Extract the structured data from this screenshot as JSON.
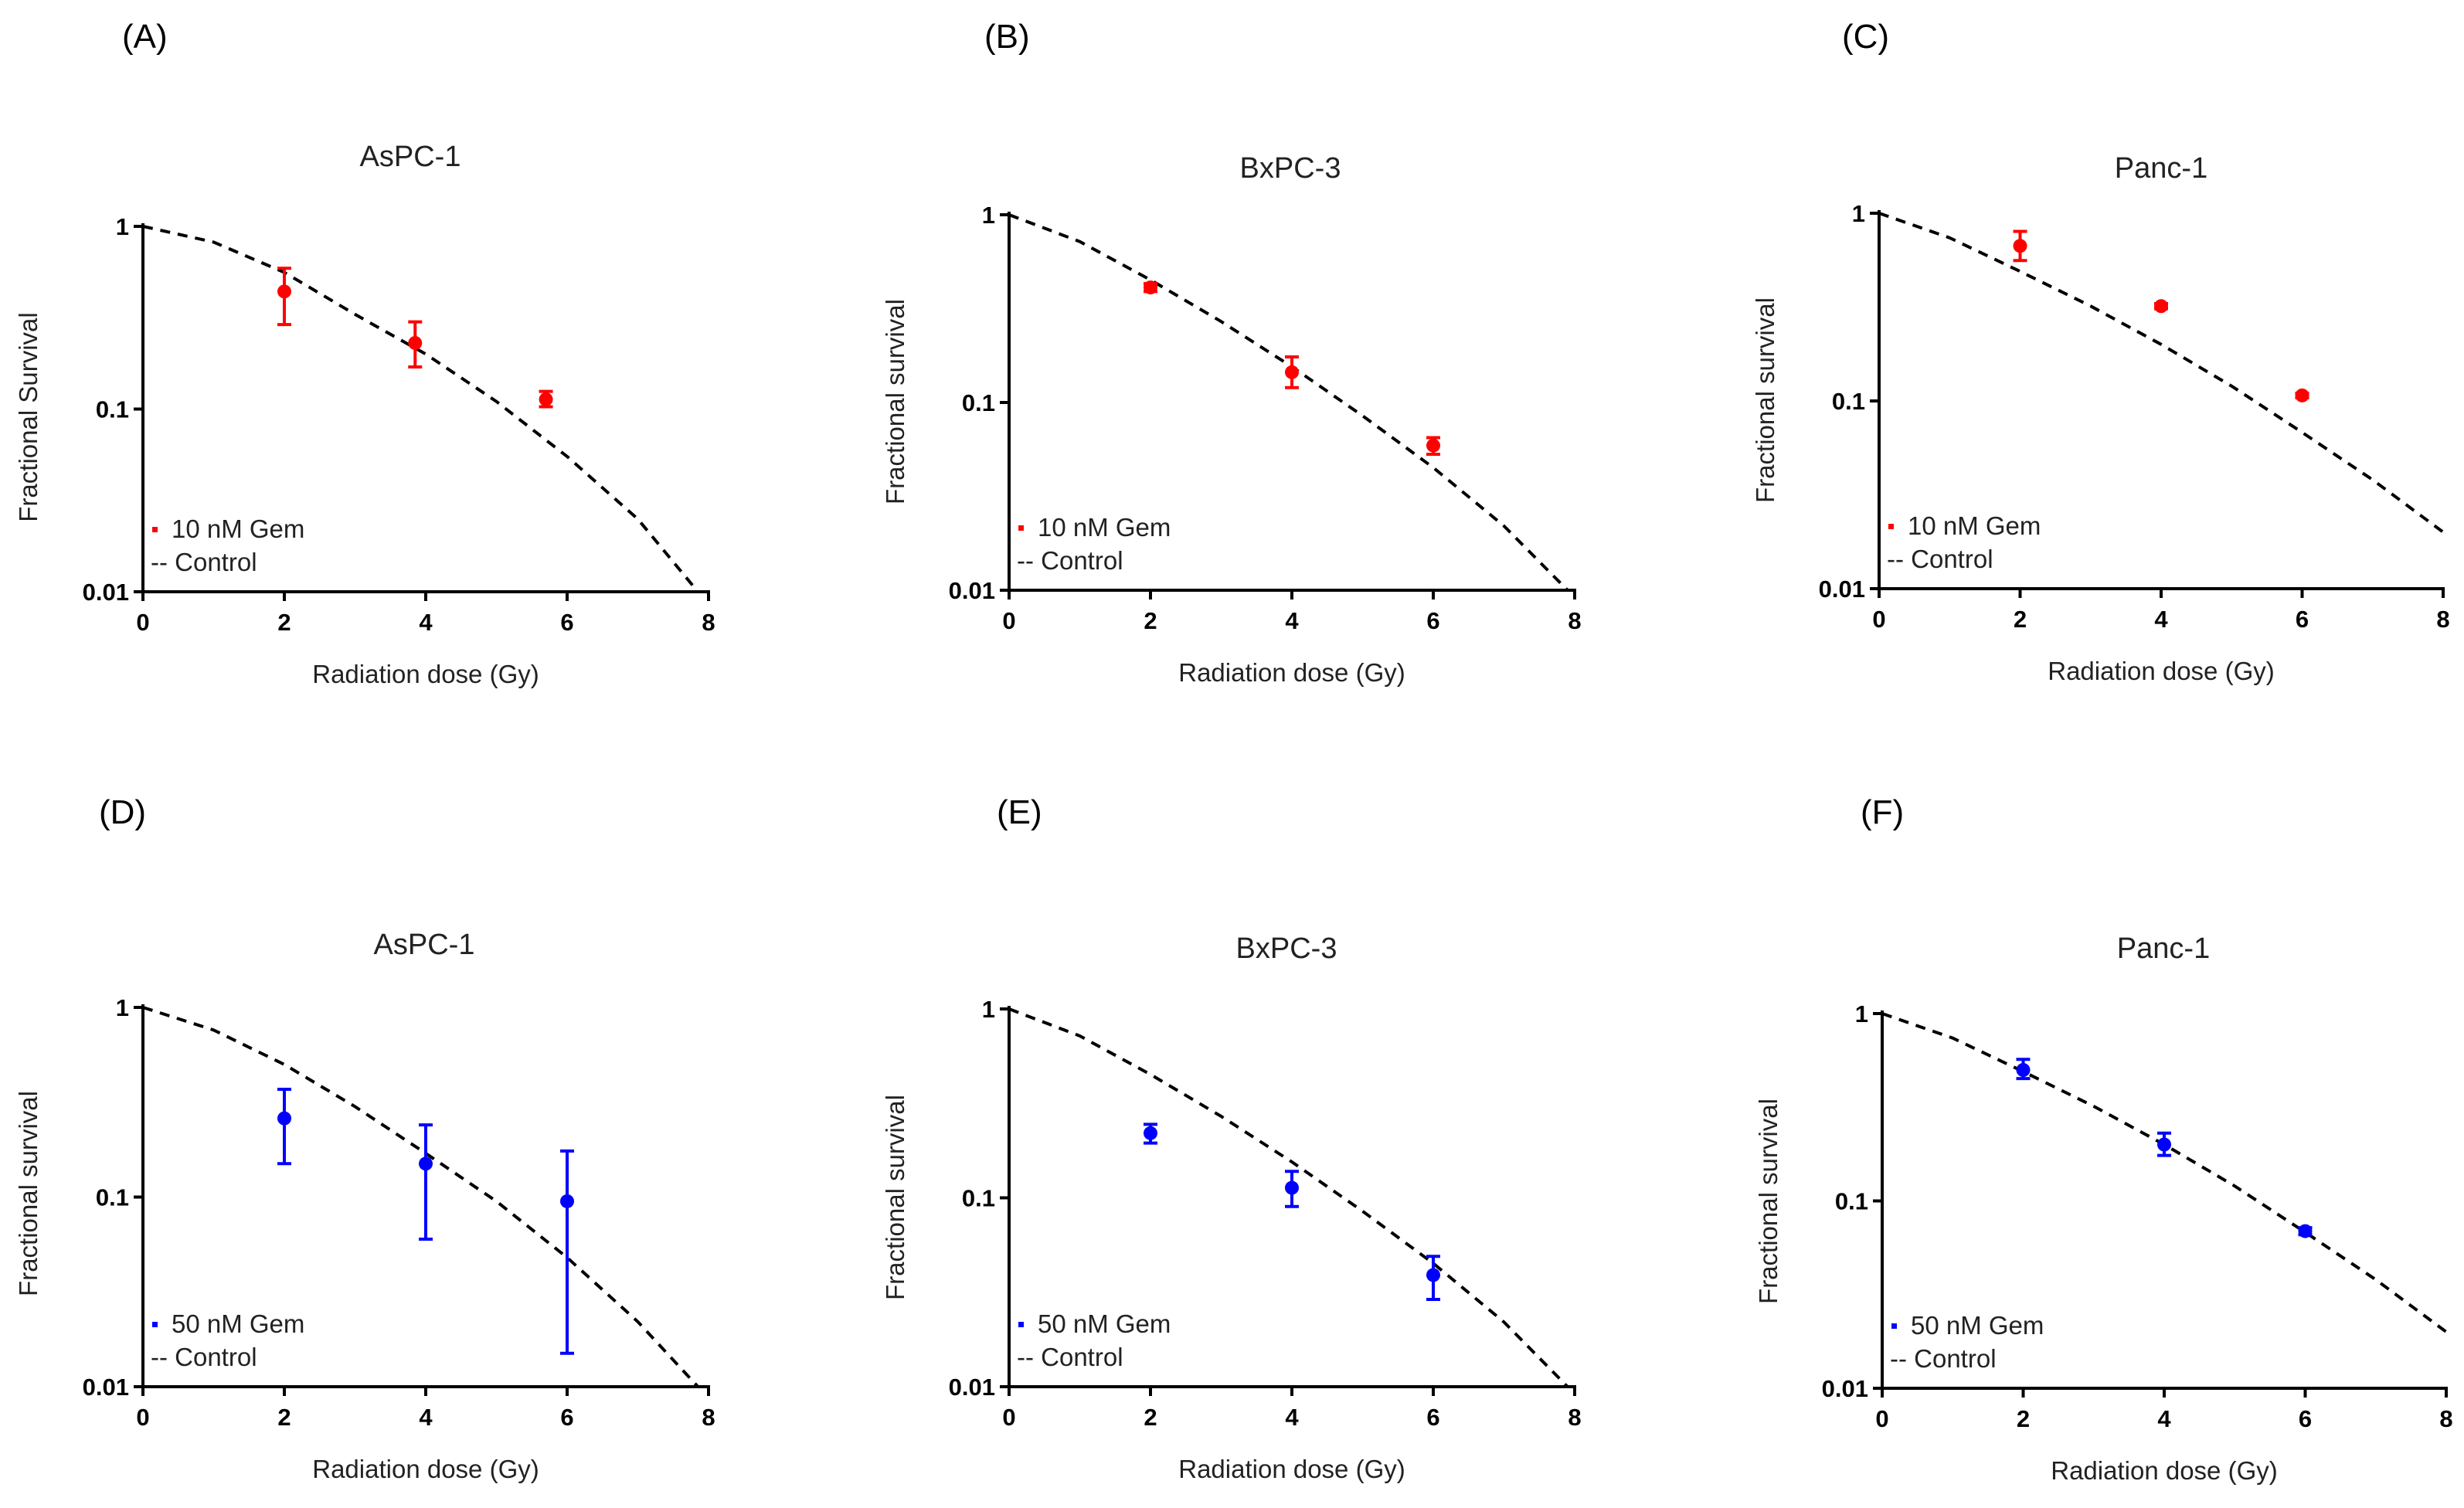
{
  "chart_data": [
    {
      "panel": "(A)",
      "type": "scatter",
      "title": "AsPC-1",
      "xlabel": "Radiation dose (Gy)",
      "ylabel": "Fractional Survival",
      "xlim": [
        0,
        8
      ],
      "ylim": [
        0.01,
        1
      ],
      "yscale": "log",
      "xticks": [
        "0",
        "2",
        "4",
        "6",
        "8"
      ],
      "yticks": [
        "0.01",
        "0.1",
        "1"
      ],
      "series": [
        {
          "name": "10 nM Gem",
          "color": "#ff0000",
          "x": [
            2,
            3.85,
            5.7
          ],
          "y": [
            0.44,
            0.23,
            0.113
          ],
          "err_low": [
            0.29,
            0.17,
            0.103
          ],
          "err_high": [
            0.59,
            0.3,
            0.125
          ]
        },
        {
          "name": "-- Control",
          "style": "dashed",
          "color": "#000000",
          "x": [
            0,
            1,
            2,
            3,
            4,
            5,
            6,
            7,
            7.85
          ],
          "y": [
            1,
            0.82,
            0.56,
            0.33,
            0.2,
            0.11,
            0.055,
            0.025,
            0.01
          ]
        }
      ],
      "legend_position": "bottom-left"
    },
    {
      "panel": "(B)",
      "type": "scatter",
      "title": "BxPC-3",
      "xlabel": "Radiation dose (Gy)",
      "ylabel": "Fractional survival",
      "xlim": [
        0,
        8
      ],
      "ylim": [
        0.01,
        1
      ],
      "yscale": "log",
      "xticks": [
        "0",
        "2",
        "4",
        "6",
        "8"
      ],
      "yticks": [
        "0.01",
        "0.1",
        "1"
      ],
      "series": [
        {
          "name": "10 nM Gem",
          "color": "#ff0000",
          "x": [
            2,
            4,
            6
          ],
          "y": [
            0.41,
            0.145,
            0.059
          ],
          "err_low": [
            0.39,
            0.12,
            0.053
          ],
          "err_high": [
            0.43,
            0.175,
            0.065
          ]
        },
        {
          "name": "-- Control",
          "style": "dashed",
          "color": "#000000",
          "x": [
            0,
            1,
            2,
            3,
            4,
            5,
            6,
            7,
            7.9
          ],
          "y": [
            1,
            0.72,
            0.45,
            0.27,
            0.155,
            0.085,
            0.045,
            0.022,
            0.01
          ]
        }
      ],
      "legend_position": "bottom-left"
    },
    {
      "panel": "(C)",
      "type": "scatter",
      "title": "Panc-1",
      "xlabel": "Radiation dose (Gy)",
      "ylabel": "Fractional survival",
      "xlim": [
        0,
        8
      ],
      "ylim": [
        0.01,
        1
      ],
      "yscale": "log",
      "xticks": [
        "0",
        "2",
        "4",
        "6",
        "8"
      ],
      "yticks": [
        "0.01",
        "0.1",
        "1"
      ],
      "series": [
        {
          "name": "10 nM Gem",
          "color": "#ff0000",
          "x": [
            2,
            4,
            6
          ],
          "y": [
            0.67,
            0.32,
            0.107
          ],
          "err_low": [
            0.56,
            0.31,
            0.104
          ],
          "err_high": [
            0.8,
            0.33,
            0.11
          ]
        },
        {
          "name": "-- Control",
          "style": "dashed",
          "color": "#000000",
          "x": [
            0,
            1,
            2,
            3,
            4,
            5,
            6,
            7,
            8
          ],
          "y": [
            1,
            0.74,
            0.49,
            0.32,
            0.2,
            0.12,
            0.068,
            0.038,
            0.02
          ]
        }
      ],
      "legend_position": "bottom-left"
    },
    {
      "panel": "(D)",
      "type": "scatter",
      "title": "AsPC-1",
      "xlabel": "Radiation dose (Gy)",
      "ylabel": "Fractional survival",
      "xlim": [
        0,
        8
      ],
      "ylim": [
        0.01,
        1
      ],
      "yscale": "log",
      "xticks": [
        "0",
        "2",
        "4",
        "6",
        "8"
      ],
      "yticks": [
        "0.01",
        "0.1",
        "1"
      ],
      "series": [
        {
          "name": "50 nM Gem",
          "color": "#0000ff",
          "x": [
            2,
            4,
            6
          ],
          "y": [
            0.26,
            0.15,
            0.095
          ],
          "err_low": [
            0.15,
            0.06,
            0.015
          ],
          "err_high": [
            0.37,
            0.24,
            0.175
          ]
        },
        {
          "name": "-- Control",
          "style": "dashed",
          "color": "#000000",
          "x": [
            0,
            1,
            2,
            3,
            4,
            5,
            6,
            7,
            7.85
          ],
          "y": [
            1,
            0.76,
            0.5,
            0.3,
            0.17,
            0.095,
            0.048,
            0.022,
            0.01
          ]
        }
      ],
      "legend_position": "bottom-left"
    },
    {
      "panel": "(E)",
      "type": "scatter",
      "title": "BxPC-3",
      "xlabel": "Radiation dose (Gy)",
      "ylabel": "Fractional survival",
      "xlim": [
        0,
        8
      ],
      "ylim": [
        0.01,
        1
      ],
      "yscale": "log",
      "xticks": [
        "0",
        "2",
        "4",
        "6",
        "8"
      ],
      "yticks": [
        "0.01",
        "0.1",
        "1"
      ],
      "series": [
        {
          "name": "50 nM Gem",
          "color": "#0000ff",
          "x": [
            2,
            4,
            6
          ],
          "y": [
            0.22,
            0.113,
            0.039
          ],
          "err_low": [
            0.195,
            0.09,
            0.029
          ],
          "err_high": [
            0.245,
            0.138,
            0.049
          ]
        },
        {
          "name": "-- Control",
          "style": "dashed",
          "color": "#000000",
          "x": [
            0,
            1,
            2,
            3,
            4,
            5,
            6,
            7,
            7.9
          ],
          "y": [
            1,
            0.72,
            0.45,
            0.27,
            0.155,
            0.085,
            0.045,
            0.022,
            0.01
          ]
        }
      ],
      "legend_position": "bottom-left"
    },
    {
      "panel": "(F)",
      "type": "scatter",
      "title": "Panc-1",
      "xlabel": "Radiation dose (Gy)",
      "ylabel": "Fractional survival",
      "xlim": [
        0,
        8
      ],
      "ylim": [
        0.01,
        1
      ],
      "yscale": "log",
      "xticks": [
        "0",
        "2",
        "4",
        "6",
        "8"
      ],
      "yticks": [
        "0.01",
        "0.1",
        "1"
      ],
      "series": [
        {
          "name": "50 nM Gem",
          "color": "#0000ff",
          "x": [
            2,
            4,
            6
          ],
          "y": [
            0.5,
            0.2,
            0.069
          ],
          "err_low": [
            0.45,
            0.175,
            0.066
          ],
          "err_high": [
            0.57,
            0.23,
            0.072
          ]
        },
        {
          "name": "-- Control",
          "style": "dashed",
          "color": "#000000",
          "x": [
            0,
            1,
            2,
            3,
            4,
            5,
            6,
            7,
            8
          ],
          "y": [
            1,
            0.74,
            0.49,
            0.32,
            0.2,
            0.12,
            0.068,
            0.038,
            0.02
          ]
        }
      ],
      "legend_position": "bottom-left"
    }
  ]
}
